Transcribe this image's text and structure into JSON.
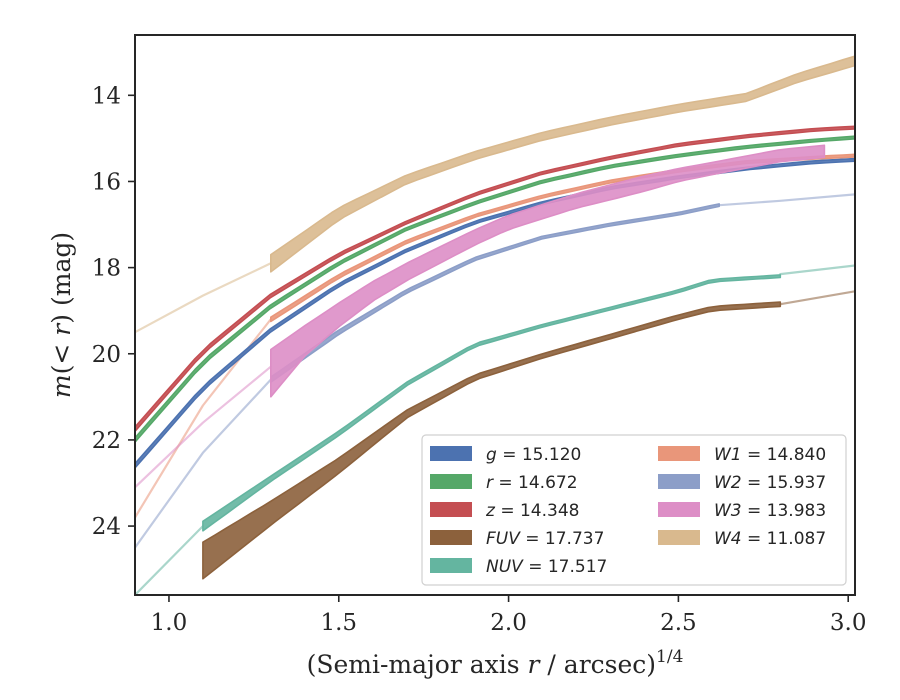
{
  "chart_data": {
    "type": "line",
    "xlabel_main": "(Semi-major axis ",
    "xlabel_r": "r",
    "xlabel_unit": " / arcsec)",
    "xlabel_exp": "1/4",
    "ylabel_m": "m",
    "ylabel_inner": "(< ",
    "ylabel_r": "r",
    "ylabel_close": ")",
    "ylabel_unit": "(mag)",
    "xlim": [
      0.9,
      3.02
    ],
    "ylim": [
      25.6,
      12.6
    ],
    "y_inverted": true,
    "x_ticks": [
      1.0,
      1.5,
      2.0,
      2.5,
      3.0
    ],
    "x_tick_labels": [
      "1.0",
      "1.5",
      "2.0",
      "2.5",
      "3.0"
    ],
    "y_ticks": [
      14,
      16,
      18,
      20,
      22,
      24
    ],
    "y_tick_labels": [
      "14",
      "16",
      "18",
      "20",
      "22",
      "24"
    ],
    "grid": false,
    "legend_position": "lower-right",
    "series": [
      {
        "name": "g",
        "value": "15.120",
        "color": "#4c72b0",
        "band_x": [
          0.9,
          1.1,
          1.3,
          1.5,
          1.7,
          1.9,
          2.1,
          2.3,
          2.5,
          2.7,
          2.9,
          3.02
        ],
        "band_y": [
          22.6,
          20.8,
          19.45,
          18.4,
          17.6,
          16.95,
          16.5,
          16.15,
          15.9,
          15.7,
          15.55,
          15.5
        ],
        "band_w": [
          0.1,
          0.09,
          0.08,
          0.07,
          0.06,
          0.06,
          0.06,
          0.06,
          0.06,
          0.06,
          0.06,
          0.06
        ],
        "band_range": [
          0.9,
          3.02
        ],
        "ext_x": [],
        "ext_y": []
      },
      {
        "name": "r",
        "value": "14.672",
        "color": "#55a868",
        "band_x": [
          0.9,
          1.1,
          1.3,
          1.5,
          1.7,
          1.9,
          2.1,
          2.3,
          2.5,
          2.7,
          2.9,
          3.02
        ],
        "band_y": [
          22.0,
          20.2,
          18.9,
          17.9,
          17.1,
          16.5,
          16.0,
          15.65,
          15.4,
          15.2,
          15.05,
          14.98
        ],
        "band_w": [
          0.1,
          0.09,
          0.08,
          0.07,
          0.06,
          0.06,
          0.06,
          0.06,
          0.06,
          0.06,
          0.06,
          0.06
        ],
        "band_range": [
          0.9,
          3.02
        ],
        "ext_x": [],
        "ext_y": []
      },
      {
        "name": "z",
        "value": "14.348",
        "color": "#c44e52",
        "band_x": [
          0.9,
          1.1,
          1.3,
          1.5,
          1.7,
          1.9,
          2.1,
          2.3,
          2.5,
          2.7,
          2.9,
          3.02
        ],
        "band_y": [
          21.75,
          19.95,
          18.65,
          17.7,
          16.95,
          16.3,
          15.8,
          15.45,
          15.15,
          14.95,
          14.8,
          14.75
        ],
        "band_w": [
          0.1,
          0.09,
          0.08,
          0.07,
          0.06,
          0.06,
          0.06,
          0.06,
          0.06,
          0.06,
          0.06,
          0.06
        ],
        "band_range": [
          0.9,
          3.02
        ],
        "ext_x": [],
        "ext_y": []
      },
      {
        "name": "FUV",
        "value": "17.737",
        "color": "#8c613c",
        "band_x": [
          1.1,
          1.3,
          1.5,
          1.7,
          1.9,
          2.1,
          2.3,
          2.5,
          2.6,
          2.8
        ],
        "band_y": [
          24.8,
          23.7,
          22.6,
          21.4,
          20.55,
          20.05,
          19.6,
          19.15,
          18.95,
          18.85
        ],
        "band_w": [
          0.85,
          0.55,
          0.35,
          0.18,
          0.12,
          0.1,
          0.1,
          0.1,
          0.1,
          0.1
        ],
        "band_range": [
          1.1,
          2.8
        ],
        "ext_x": [
          2.8,
          3.02
        ],
        "ext_y": [
          18.85,
          18.55
        ]
      },
      {
        "name": "NUV",
        "value": "17.517",
        "color": "#64b5a0",
        "band_x": [
          1.1,
          1.3,
          1.5,
          1.7,
          1.9,
          2.1,
          2.3,
          2.5,
          2.6,
          2.8
        ],
        "band_y": [
          24.0,
          22.9,
          21.85,
          20.7,
          19.8,
          19.35,
          18.95,
          18.55,
          18.3,
          18.2
        ],
        "band_w": [
          0.22,
          0.12,
          0.1,
          0.08,
          0.07,
          0.06,
          0.06,
          0.06,
          0.06,
          0.06
        ],
        "band_range": [
          1.1,
          2.8
        ],
        "ext_x": [
          0.9,
          1.1,
          2.8,
          3.02
        ],
        "ext_y": [
          25.6,
          24.0,
          18.15,
          17.95
        ]
      },
      {
        "name": "W1",
        "value": "14.840",
        "color": "#e9967a",
        "band_x": [
          1.3,
          1.5,
          1.7,
          1.9,
          2.1,
          2.3,
          2.5,
          2.7,
          2.9,
          3.02
        ],
        "band_y": [
          19.2,
          18.2,
          17.4,
          16.8,
          16.35,
          16.0,
          15.75,
          15.55,
          15.45,
          15.4
        ],
        "band_w": [
          0.1,
          0.08,
          0.07,
          0.06,
          0.06,
          0.06,
          0.06,
          0.06,
          0.06,
          0.06
        ],
        "band_range": [
          1.3,
          3.02
        ],
        "ext_x": [
          0.9,
          1.1,
          1.3
        ],
        "ext_y": [
          23.8,
          21.2,
          19.2
        ]
      },
      {
        "name": "W2",
        "value": "15.937",
        "color": "#8c9ec8",
        "band_x": [
          1.3,
          1.5,
          1.7,
          1.9,
          2.1,
          2.3,
          2.5,
          2.62
        ],
        "band_y": [
          20.6,
          19.5,
          18.55,
          17.8,
          17.3,
          17.0,
          16.75,
          16.55
        ],
        "band_w": [
          0.12,
          0.1,
          0.08,
          0.07,
          0.06,
          0.06,
          0.06,
          0.06
        ],
        "band_range": [
          1.3,
          2.62
        ],
        "ext_x": [
          0.9,
          1.1,
          1.3,
          2.62,
          2.8,
          3.02
        ],
        "ext_y": [
          24.5,
          22.3,
          20.6,
          16.55,
          16.45,
          16.3
        ]
      },
      {
        "name": "W3",
        "value": "13.983",
        "color": "#dd8ec6",
        "band_x": [
          1.3,
          1.4,
          1.5,
          1.6,
          1.7,
          1.8,
          1.9,
          2.0,
          2.1,
          2.2,
          2.3,
          2.4,
          2.5,
          2.6,
          2.7,
          2.8,
          2.93
        ],
        "band_y": [
          20.45,
          19.7,
          19.1,
          18.55,
          18.1,
          17.7,
          17.3,
          16.95,
          16.7,
          16.45,
          16.25,
          16.05,
          15.85,
          15.7,
          15.55,
          15.4,
          15.3
        ],
        "band_w": [
          1.1,
          0.7,
          0.55,
          0.45,
          0.4,
          0.38,
          0.35,
          0.33,
          0.33,
          0.33,
          0.35,
          0.35,
          0.3,
          0.28,
          0.28,
          0.28,
          0.28
        ],
        "band_range": [
          1.3,
          2.93
        ],
        "ext_x": [
          0.9,
          1.1,
          1.3
        ],
        "ext_y": [
          23.1,
          21.6,
          20.3
        ]
      },
      {
        "name": "W4",
        "value": "11.087",
        "color": "#d9b98e",
        "band_x": [
          1.3,
          1.5,
          1.7,
          1.9,
          2.1,
          2.3,
          2.5,
          2.7,
          2.85,
          3.02
        ],
        "band_y": [
          17.9,
          16.75,
          15.95,
          15.4,
          14.95,
          14.6,
          14.3,
          14.05,
          13.6,
          13.2
        ],
        "band_w": [
          0.4,
          0.28,
          0.2,
          0.18,
          0.18,
          0.18,
          0.18,
          0.18,
          0.2,
          0.22
        ],
        "band_range": [
          1.3,
          3.02
        ],
        "ext_x": [
          0.9,
          1.1,
          1.3
        ],
        "ext_y": [
          19.5,
          18.65,
          17.9
        ]
      }
    ]
  }
}
